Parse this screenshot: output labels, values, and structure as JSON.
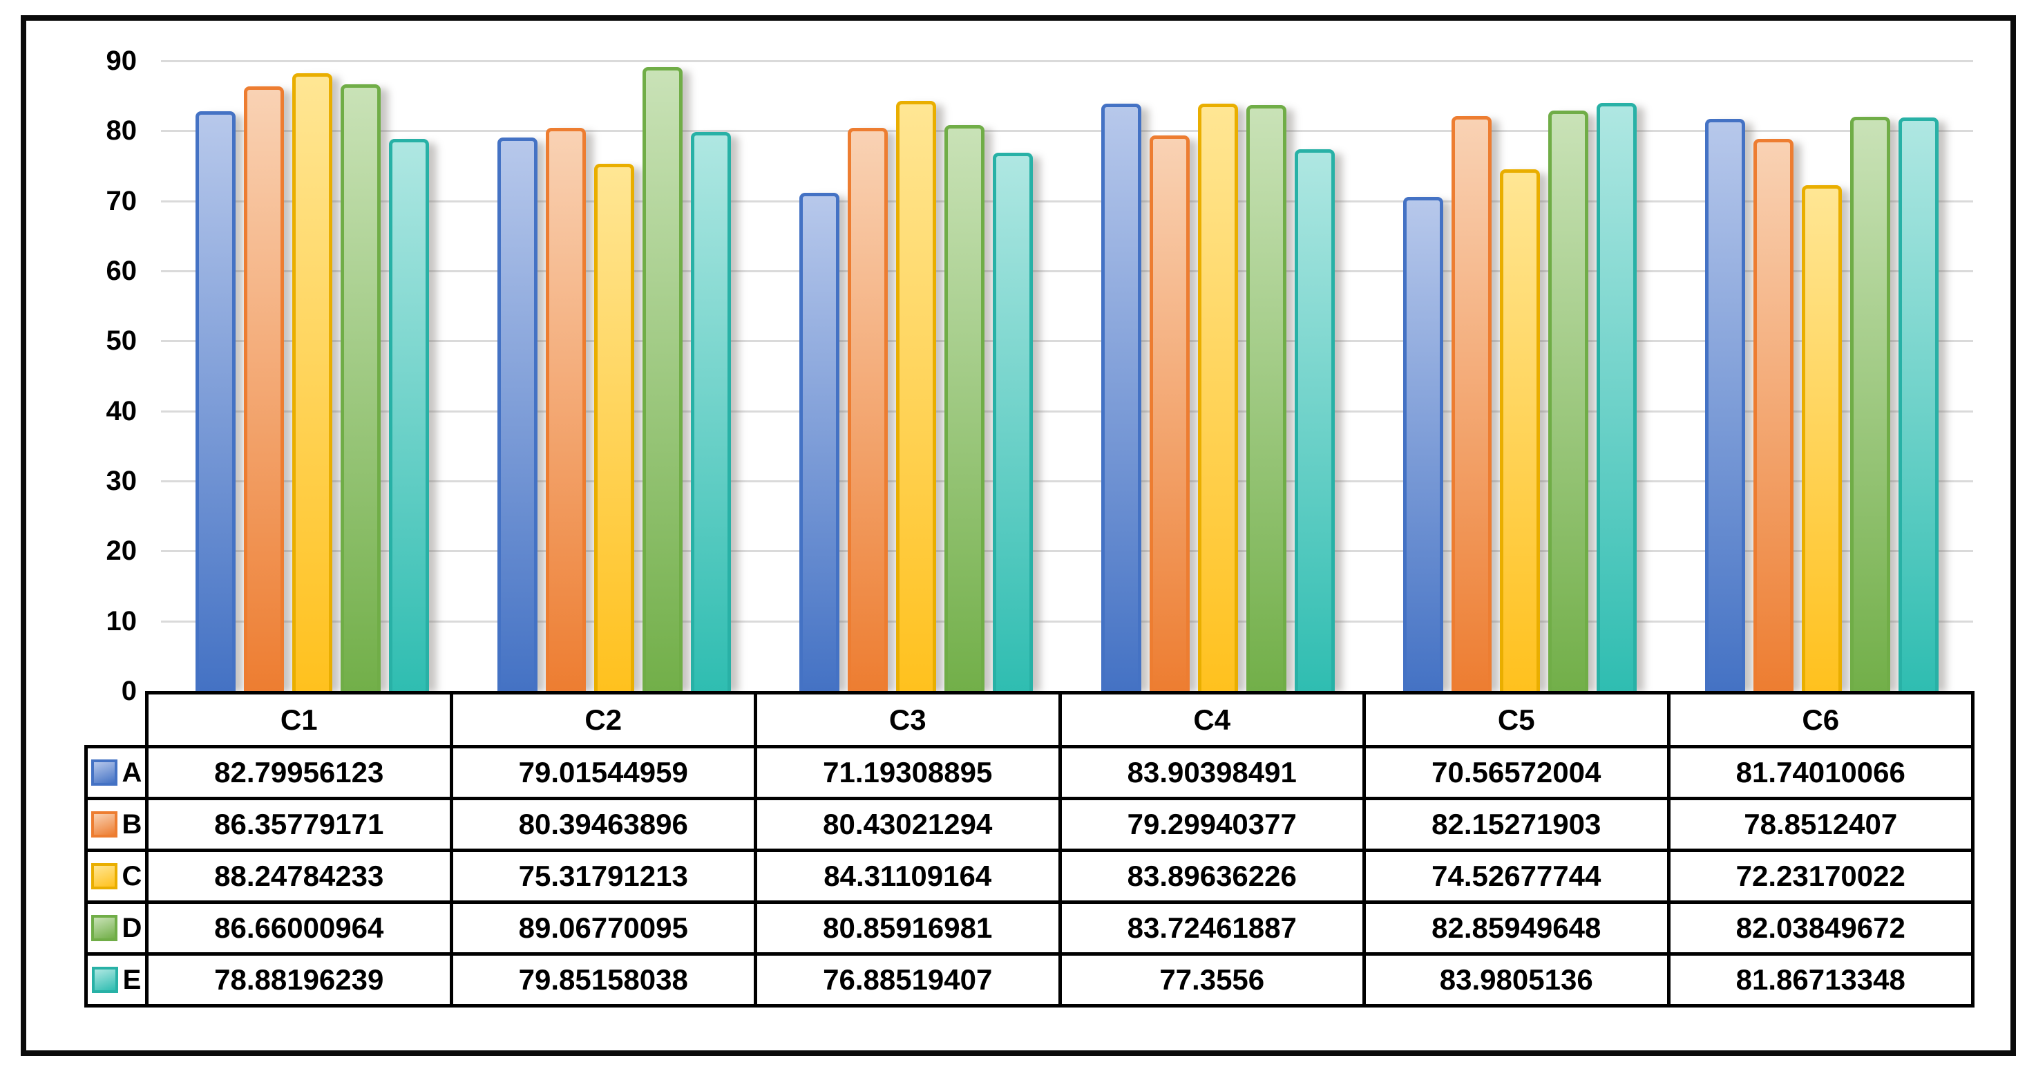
{
  "chart_data": {
    "type": "bar",
    "title": "",
    "xlabel": "",
    "ylabel": "",
    "categories": [
      "C1",
      "C2",
      "C3",
      "C4",
      "C5",
      "C6"
    ],
    "series": [
      {
        "name": "A",
        "values": [
          82.79956123,
          79.01544959,
          71.19308895,
          83.90398491,
          70.56572004,
          81.74010066
        ],
        "border_color": "#4472C4",
        "fill_top": "#B7C8EB",
        "fill_bottom": "#4472C4"
      },
      {
        "name": "B",
        "values": [
          86.35779171,
          80.39463896,
          80.43021294,
          79.29940377,
          82.15271903,
          78.8512407
        ],
        "border_color": "#ED7D31",
        "fill_top": "#F9D2B4",
        "fill_bottom": "#ED7D31"
      },
      {
        "name": "C",
        "values": [
          88.24784233,
          75.31791213,
          84.31109164,
          83.89636226,
          74.52677744,
          72.23170022
        ],
        "border_color": "#E9AE00",
        "fill_top": "#FFE694",
        "fill_bottom": "#FFC11E"
      },
      {
        "name": "D",
        "values": [
          86.66000964,
          89.06770095,
          80.85916981,
          83.72461887,
          82.85949648,
          82.03849672
        ],
        "border_color": "#70AD47",
        "fill_top": "#C9E2B7",
        "fill_bottom": "#72AF49"
      },
      {
        "name": "E",
        "values": [
          78.88196239,
          79.85158038,
          76.88519407,
          77.3556,
          83.9805136,
          81.86713348
        ],
        "border_color": "#28B1A6",
        "fill_top": "#AFE7E2",
        "fill_bottom": "#2FBDB1"
      }
    ],
    "ylim": [
      0,
      90
    ],
    "ytick_step": 10,
    "ytick_labels": [
      "0",
      "10",
      "20",
      "30",
      "40",
      "50",
      "60",
      "70",
      "80",
      "90"
    ],
    "grid": true,
    "gridline_color": "#dadada",
    "legend_position": "table-left",
    "frame_border_color": "#0b0b0b",
    "table_border_color": "#000000"
  }
}
